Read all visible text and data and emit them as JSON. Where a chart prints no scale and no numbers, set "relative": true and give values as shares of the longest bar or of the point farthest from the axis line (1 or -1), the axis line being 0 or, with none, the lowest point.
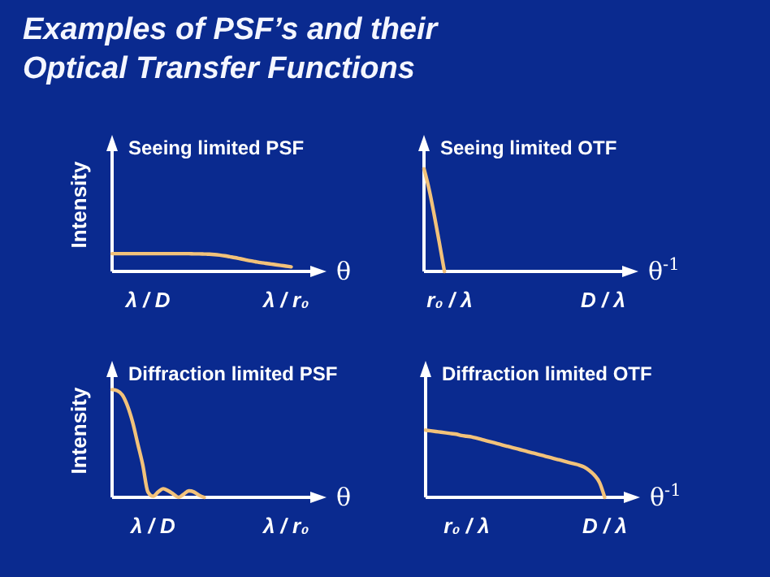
{
  "chart_data": [
    {
      "type": "line",
      "title": "Seeing limited PSF",
      "ylabel": "Intensity",
      "xlabel": "θ",
      "relative": true,
      "annotations": [
        "Examples of PSF’s and their Optical Transfer Functions"
      ],
      "categories": [
        null,
        null,
        null,
        null,
        null,
        null,
        null,
        "λ / D",
        null,
        null,
        null,
        null,
        null,
        null,
        null,
        null,
        null,
        null,
        null,
        null,
        null,
        null,
        null,
        null,
        null,
        null,
        null,
        null,
        null,
        null,
        null,
        null,
        null,
        null,
        "λ / r₀",
        null,
        null,
        null,
        null,
        null,
        null
      ],
      "series": [
        {
          "color": "#f2c27a",
          "values": [
            1,
            1,
            1,
            1,
            1,
            1,
            1,
            1,
            1,
            1,
            1,
            1,
            1,
            1,
            1,
            1,
            0.99,
            0.99,
            0.98,
            0.97,
            0.95,
            0.92,
            0.88,
            0.83,
            0.78,
            0.72,
            0.66,
            0.6,
            0.55,
            0.5,
            0.46,
            0.42,
            0.38,
            0.34,
            0.3,
            0.26,
            null,
            null,
            null,
            null,
            null
          ]
        }
      ]
    },
    {
      "type": "line",
      "title": "Seeing limited OTF",
      "xlabel": "θ$^{-1}$",
      "relative": true,
      "categories": [
        null,
        null,
        null,
        null,
        null,
        "r₀ / λ",
        null,
        null,
        null,
        null,
        null,
        null,
        null,
        null,
        null,
        null,
        null,
        null,
        null,
        null,
        null,
        null,
        null,
        null,
        null,
        null,
        null,
        null,
        null,
        null,
        null,
        null,
        null,
        null,
        null,
        "D / λ",
        null,
        null,
        null,
        null,
        null
      ],
      "series": [
        {
          "color": "#f2c27a",
          "values": [
            1,
            0.8,
            0.55,
            0.28,
            0,
            null,
            null,
            null,
            null,
            null,
            null,
            null,
            null,
            null,
            null,
            null,
            null,
            null,
            null,
            null,
            null,
            null,
            null,
            null,
            null,
            null,
            null,
            null,
            null,
            null,
            null,
            null,
            null,
            null,
            null,
            null,
            null,
            null,
            null,
            null,
            null
          ]
        }
      ]
    },
    {
      "type": "line",
      "title": "Diffraction limited PSF",
      "ylabel": "Intensity",
      "xlabel": "θ",
      "relative": true,
      "categories": [
        null,
        null,
        null,
        null,
        null,
        null,
        null,
        null,
        "λ / D",
        null,
        null,
        null,
        null,
        null,
        null,
        null,
        null,
        null,
        null,
        null,
        null,
        null,
        null,
        null,
        null,
        null,
        null,
        null,
        null,
        null,
        null,
        null,
        null,
        null,
        "λ / r₀",
        null,
        null,
        null,
        null,
        null,
        null
      ],
      "series": [
        {
          "color": "#f2c27a",
          "values": [
            1,
            0.99,
            0.95,
            0.85,
            0.7,
            0.5,
            0.3,
            0.05,
            0.01,
            0.05,
            0.08,
            0.06,
            0.03,
            0,
            0.03,
            0.06,
            0.05,
            0.02,
            0,
            null,
            null,
            null,
            null,
            null,
            null,
            null,
            null,
            null,
            null,
            null,
            null,
            null,
            null,
            null,
            null,
            null,
            null,
            null,
            null,
            null,
            null
          ]
        }
      ]
    },
    {
      "type": "line",
      "title": "Diffraction limited OTF",
      "xlabel": "θ$^{-1}$",
      "relative": true,
      "categories": [
        null,
        null,
        null,
        null,
        null,
        null,
        null,
        null,
        "r₀ / λ",
        null,
        null,
        null,
        null,
        null,
        null,
        null,
        null,
        null,
        null,
        null,
        null,
        null,
        null,
        null,
        null,
        null,
        null,
        null,
        null,
        null,
        null,
        null,
        null,
        null,
        null,
        "D / λ",
        null,
        null,
        null,
        null,
        null
      ],
      "series": [
        {
          "color": "#f2c27a",
          "values": [
            1,
            0.99,
            0.98,
            0.97,
            0.96,
            0.95,
            0.94,
            0.92,
            0.91,
            0.9,
            0.88,
            0.86,
            0.84,
            0.82,
            0.8,
            0.78,
            0.76,
            0.74,
            0.72,
            0.7,
            0.68,
            0.66,
            0.64,
            0.62,
            0.6,
            0.58,
            0.56,
            0.54,
            0.52,
            0.5,
            0.48,
            0.45,
            0.4,
            0.33,
            0.22,
            0,
            null,
            null,
            null,
            null,
            null
          ]
        }
      ]
    }
  ]
}
